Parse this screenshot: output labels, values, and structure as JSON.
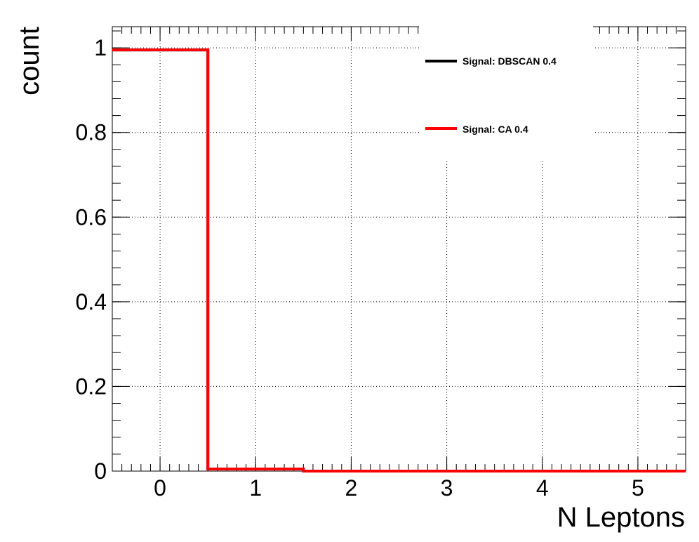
{
  "chart_data": {
    "type": "line",
    "step": true,
    "xlabel": "N Leptons",
    "ylabel": "count",
    "xlim": [
      -0.5,
      5.5
    ],
    "ylim": [
      0,
      1.05
    ],
    "x_ticks": [
      "0",
      "1",
      "2",
      "3",
      "4",
      "5"
    ],
    "y_ticks": [
      "0",
      "0.2",
      "0.4",
      "0.6",
      "0.8",
      "1"
    ],
    "grid": true,
    "legend_position": "top-right",
    "bin_edges": [
      -0.5,
      0.5,
      1.5,
      2.5,
      3.5,
      4.5,
      5.5
    ],
    "series": [
      {
        "name": "Signal: DBSCAN 0.4",
        "color": "#000000",
        "values": [
          0.995,
          0.005,
          0,
          0,
          0,
          0
        ]
      },
      {
        "name": "Signal: CA 0.4",
        "color": "#ff0000",
        "values": [
          0.995,
          0.005,
          0,
          0,
          0,
          0
        ]
      }
    ]
  }
}
